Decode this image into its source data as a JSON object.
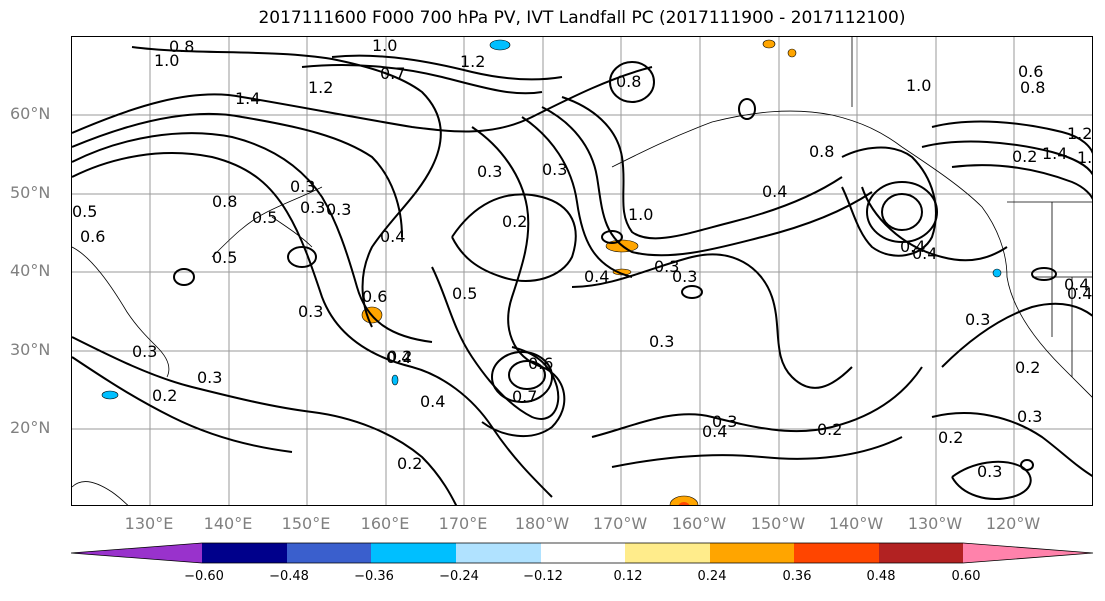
{
  "title": "2017111600 F000 700 hPa PV, IVT Landfall PC (2017111900 - 2017112100)",
  "latitude_labels": [
    "60°N",
    "50°N",
    "40°N",
    "30°N",
    "20°N"
  ],
  "longitude_labels": [
    "130°E",
    "140°E",
    "150°E",
    "160°E",
    "170°E",
    "180°W",
    "170°W",
    "160°W",
    "150°W",
    "140°W",
    "130°W",
    "120°W"
  ],
  "contour_labels": [
    "0.8",
    "1.0",
    "1.0",
    "1.4",
    "1.2",
    "0.7",
    "1.2",
    "0.8",
    "1.0",
    "0.6",
    "0.8",
    "1.4",
    "1.2",
    "1.4",
    "0.5",
    "0.6",
    "0.8",
    "0.3",
    "0.5",
    "0.3",
    "0.3",
    "0.3",
    "0.2",
    "1.0",
    "0.4",
    "0.8",
    "0.4",
    "0.2",
    "0.4",
    "0.5",
    "0.4",
    "0.6",
    "0.4",
    "0.3",
    "0.4",
    "0.3",
    "0.4",
    "0.3",
    "0.3",
    "0.5",
    "0.3",
    "0.2",
    "0.3",
    "0.2",
    "0.3",
    "0.4",
    "0.2",
    "0.7",
    "0.6",
    "0.3",
    "0.4",
    "0.2",
    "0.2",
    "0.3",
    "0.2",
    "0.3",
    "0.4",
    "0.3"
  ],
  "colorbar": {
    "ticks": [
      "−0.60",
      "−0.48",
      "−0.36",
      "−0.24",
      "−0.12",
      "0.12",
      "0.24",
      "0.36",
      "0.48",
      "0.60"
    ],
    "colors": [
      "#9932cc",
      "#00008b",
      "#3a5fcd",
      "#00bfff",
      "#b0e2ff",
      "#ffffff",
      "#ffec8b",
      "#ffa500",
      "#ff4500",
      "#b22222",
      "#ff82ab"
    ]
  }
}
